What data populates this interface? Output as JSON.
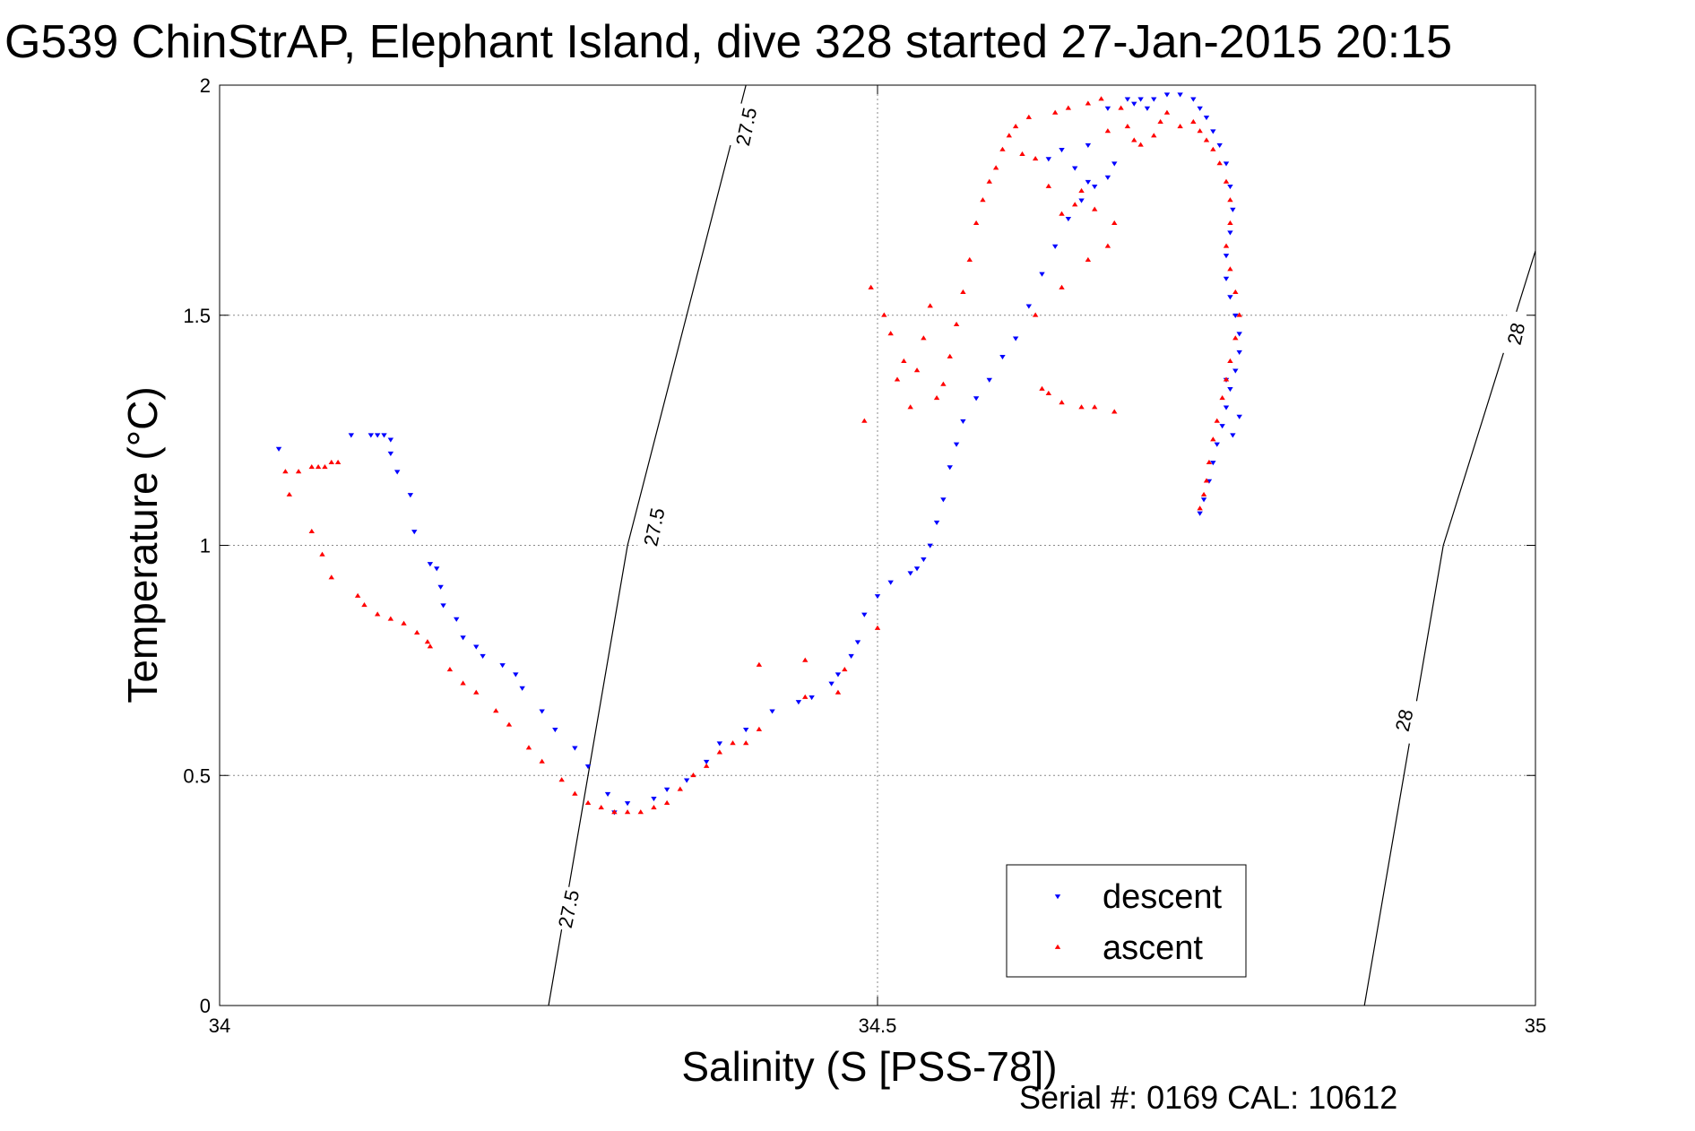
{
  "title": "G539 ChinStrAP, Elephant Island, dive 328 started 27-Jan-2015 20:15",
  "footnote": "Serial #: 0169 CAL: 10612",
  "colors": {
    "descent": "#0000ff",
    "ascent": "#ff0000",
    "axis": "#000000",
    "grid": "#8a8a8a"
  },
  "chart_data": {
    "type": "scatter",
    "xlabel": "Salinity (S [PSS-78])",
    "ylabel": "Temperature (°C)",
    "xlim": [
      34,
      35
    ],
    "ylim": [
      0,
      2
    ],
    "xticks": [
      "34",
      "34.5",
      "35"
    ],
    "yticks": [
      "0",
      "0.5",
      "1",
      "1.5",
      "2"
    ],
    "grid": true,
    "legend_position": "bottom-right",
    "contours": [
      {
        "label": "27.5",
        "points": [
          [
            34.25,
            0.0
          ],
          [
            34.31,
            1.0
          ],
          [
            34.4,
            2.0
          ]
        ],
        "label_at": [
          [
            34.265,
            0.21
          ],
          [
            34.33,
            1.04
          ],
          [
            34.4,
            1.91
          ]
        ]
      },
      {
        "label": "28",
        "points": [
          [
            34.87,
            0.0
          ],
          [
            34.93,
            1.0
          ],
          [
            35.0,
            1.64
          ]
        ],
        "label_at": [
          [
            34.9,
            0.62
          ],
          [
            34.985,
            1.46
          ]
        ]
      }
    ],
    "series": [
      {
        "name": "descent",
        "color": "#0000ff",
        "marker": "triangle-down",
        "points": [
          [
            34.045,
            1.21
          ],
          [
            34.1,
            1.24
          ],
          [
            34.115,
            1.24
          ],
          [
            34.12,
            1.24
          ],
          [
            34.125,
            1.24
          ],
          [
            34.13,
            1.23
          ],
          [
            34.13,
            1.2
          ],
          [
            34.135,
            1.16
          ],
          [
            34.145,
            1.11
          ],
          [
            34.148,
            1.03
          ],
          [
            34.16,
            0.96
          ],
          [
            34.165,
            0.95
          ],
          [
            34.168,
            0.91
          ],
          [
            34.17,
            0.87
          ],
          [
            34.18,
            0.84
          ],
          [
            34.185,
            0.8
          ],
          [
            34.195,
            0.78
          ],
          [
            34.2,
            0.76
          ],
          [
            34.215,
            0.74
          ],
          [
            34.225,
            0.72
          ],
          [
            34.23,
            0.69
          ],
          [
            34.245,
            0.64
          ],
          [
            34.255,
            0.6
          ],
          [
            34.27,
            0.56
          ],
          [
            34.28,
            0.52
          ],
          [
            34.295,
            0.46
          ],
          [
            34.3,
            0.42
          ],
          [
            34.31,
            0.44
          ],
          [
            34.33,
            0.45
          ],
          [
            34.34,
            0.47
          ],
          [
            34.355,
            0.49
          ],
          [
            34.37,
            0.53
          ],
          [
            34.38,
            0.57
          ],
          [
            34.4,
            0.6
          ],
          [
            34.42,
            0.64
          ],
          [
            34.44,
            0.66
          ],
          [
            34.45,
            0.67
          ],
          [
            34.465,
            0.7
          ],
          [
            34.47,
            0.72
          ],
          [
            34.48,
            0.76
          ],
          [
            34.485,
            0.79
          ],
          [
            34.49,
            0.85
          ],
          [
            34.5,
            0.89
          ],
          [
            34.51,
            0.92
          ],
          [
            34.525,
            0.94
          ],
          [
            34.53,
            0.95
          ],
          [
            34.535,
            0.97
          ],
          [
            34.54,
            1.0
          ],
          [
            34.545,
            1.05
          ],
          [
            34.55,
            1.1
          ],
          [
            34.555,
            1.17
          ],
          [
            34.56,
            1.22
          ],
          [
            34.565,
            1.27
          ],
          [
            34.575,
            1.32
          ],
          [
            34.585,
            1.36
          ],
          [
            34.595,
            1.41
          ],
          [
            34.605,
            1.45
          ],
          [
            34.615,
            1.52
          ],
          [
            34.625,
            1.59
          ],
          [
            34.635,
            1.65
          ],
          [
            34.645,
            1.71
          ],
          [
            34.655,
            1.75
          ],
          [
            34.665,
            1.78
          ],
          [
            34.675,
            1.8
          ],
          [
            34.68,
            1.83
          ],
          [
            34.66,
            1.79
          ],
          [
            34.65,
            1.82
          ],
          [
            34.63,
            1.84
          ],
          [
            34.64,
            1.86
          ],
          [
            34.66,
            1.87
          ],
          [
            34.675,
            1.95
          ],
          [
            34.69,
            1.97
          ],
          [
            34.695,
            1.96
          ],
          [
            34.7,
            1.97
          ],
          [
            34.705,
            1.95
          ],
          [
            34.71,
            1.97
          ],
          [
            34.72,
            1.98
          ],
          [
            34.73,
            1.98
          ],
          [
            34.74,
            1.97
          ],
          [
            34.745,
            1.95
          ],
          [
            34.75,
            1.93
          ],
          [
            34.755,
            1.9
          ],
          [
            34.76,
            1.87
          ],
          [
            34.765,
            1.83
          ],
          [
            34.768,
            1.78
          ],
          [
            34.77,
            1.73
          ],
          [
            34.768,
            1.68
          ],
          [
            34.765,
            1.63
          ],
          [
            34.765,
            1.58
          ],
          [
            34.768,
            1.54
          ],
          [
            34.772,
            1.5
          ],
          [
            34.775,
            1.46
          ],
          [
            34.775,
            1.42
          ],
          [
            34.772,
            1.38
          ],
          [
            34.768,
            1.34
          ],
          [
            34.765,
            1.3
          ],
          [
            34.762,
            1.26
          ],
          [
            34.758,
            1.22
          ],
          [
            34.755,
            1.18
          ],
          [
            34.752,
            1.14
          ],
          [
            34.748,
            1.1
          ],
          [
            34.745,
            1.07
          ],
          [
            34.765,
            1.36
          ],
          [
            34.775,
            1.28
          ],
          [
            34.77,
            1.24
          ]
        ]
      },
      {
        "name": "ascent",
        "color": "#ff0000",
        "marker": "triangle-up",
        "points": [
          [
            34.05,
            1.16
          ],
          [
            34.06,
            1.16
          ],
          [
            34.07,
            1.17
          ],
          [
            34.075,
            1.17
          ],
          [
            34.08,
            1.17
          ],
          [
            34.085,
            1.18
          ],
          [
            34.09,
            1.18
          ],
          [
            34.053,
            1.11
          ],
          [
            34.07,
            1.03
          ],
          [
            34.078,
            0.98
          ],
          [
            34.085,
            0.93
          ],
          [
            34.105,
            0.89
          ],
          [
            34.11,
            0.87
          ],
          [
            34.12,
            0.85
          ],
          [
            34.13,
            0.84
          ],
          [
            34.14,
            0.83
          ],
          [
            34.15,
            0.81
          ],
          [
            34.158,
            0.79
          ],
          [
            34.16,
            0.78
          ],
          [
            34.175,
            0.73
          ],
          [
            34.185,
            0.7
          ],
          [
            34.195,
            0.68
          ],
          [
            34.21,
            0.64
          ],
          [
            34.22,
            0.61
          ],
          [
            34.235,
            0.56
          ],
          [
            34.245,
            0.53
          ],
          [
            34.26,
            0.49
          ],
          [
            34.27,
            0.46
          ],
          [
            34.28,
            0.44
          ],
          [
            34.29,
            0.43
          ],
          [
            34.3,
            0.42
          ],
          [
            34.31,
            0.42
          ],
          [
            34.32,
            0.42
          ],
          [
            34.33,
            0.43
          ],
          [
            34.34,
            0.44
          ],
          [
            34.35,
            0.47
          ],
          [
            34.36,
            0.5
          ],
          [
            34.37,
            0.52
          ],
          [
            34.38,
            0.55
          ],
          [
            34.39,
            0.57
          ],
          [
            34.4,
            0.57
          ],
          [
            34.41,
            0.6
          ],
          [
            34.41,
            0.74
          ],
          [
            34.445,
            0.67
          ],
          [
            34.445,
            0.75
          ],
          [
            34.47,
            0.68
          ],
          [
            34.475,
            0.73
          ],
          [
            34.49,
            1.27
          ],
          [
            34.495,
            1.56
          ],
          [
            34.5,
            0.82
          ],
          [
            34.505,
            1.5
          ],
          [
            34.51,
            1.46
          ],
          [
            34.515,
            1.36
          ],
          [
            34.52,
            1.4
          ],
          [
            34.525,
            1.3
          ],
          [
            34.53,
            1.38
          ],
          [
            34.535,
            1.45
          ],
          [
            34.54,
            1.52
          ],
          [
            34.545,
            1.32
          ],
          [
            34.55,
            1.35
          ],
          [
            34.555,
            1.41
          ],
          [
            34.56,
            1.48
          ],
          [
            34.565,
            1.55
          ],
          [
            34.57,
            1.62
          ],
          [
            34.575,
            1.7
          ],
          [
            34.58,
            1.75
          ],
          [
            34.585,
            1.79
          ],
          [
            34.59,
            1.82
          ],
          [
            34.595,
            1.86
          ],
          [
            34.6,
            1.89
          ],
          [
            34.605,
            1.91
          ],
          [
            34.61,
            1.85
          ],
          [
            34.615,
            1.93
          ],
          [
            34.62,
            1.84
          ],
          [
            34.63,
            1.78
          ],
          [
            34.635,
            1.94
          ],
          [
            34.64,
            1.72
          ],
          [
            34.645,
            1.95
          ],
          [
            34.65,
            1.74
          ],
          [
            34.655,
            1.77
          ],
          [
            34.66,
            1.96
          ],
          [
            34.665,
            1.73
          ],
          [
            34.67,
            1.97
          ],
          [
            34.675,
            1.9
          ],
          [
            34.68,
            1.7
          ],
          [
            34.685,
            1.95
          ],
          [
            34.69,
            1.91
          ],
          [
            34.695,
            1.88
          ],
          [
            34.7,
            1.87
          ],
          [
            34.71,
            1.89
          ],
          [
            34.715,
            1.92
          ],
          [
            34.72,
            1.94
          ],
          [
            34.73,
            1.91
          ],
          [
            34.74,
            1.92
          ],
          [
            34.745,
            1.9
          ],
          [
            34.75,
            1.88
          ],
          [
            34.755,
            1.86
          ],
          [
            34.76,
            1.83
          ],
          [
            34.765,
            1.79
          ],
          [
            34.768,
            1.75
          ],
          [
            34.768,
            1.7
          ],
          [
            34.765,
            1.65
          ],
          [
            34.768,
            1.6
          ],
          [
            34.772,
            1.55
          ],
          [
            34.775,
            1.5
          ],
          [
            34.772,
            1.45
          ],
          [
            34.768,
            1.4
          ],
          [
            34.765,
            1.36
          ],
          [
            34.762,
            1.32
          ],
          [
            34.758,
            1.27
          ],
          [
            34.755,
            1.23
          ],
          [
            34.752,
            1.18
          ],
          [
            34.75,
            1.14
          ],
          [
            34.748,
            1.11
          ],
          [
            34.745,
            1.08
          ],
          [
            34.625,
            1.34
          ],
          [
            34.63,
            1.33
          ],
          [
            34.64,
            1.31
          ],
          [
            34.655,
            1.3
          ],
          [
            34.665,
            1.3
          ],
          [
            34.68,
            1.29
          ],
          [
            34.62,
            1.5
          ],
          [
            34.64,
            1.56
          ],
          [
            34.66,
            1.62
          ],
          [
            34.675,
            1.65
          ]
        ]
      }
    ]
  }
}
